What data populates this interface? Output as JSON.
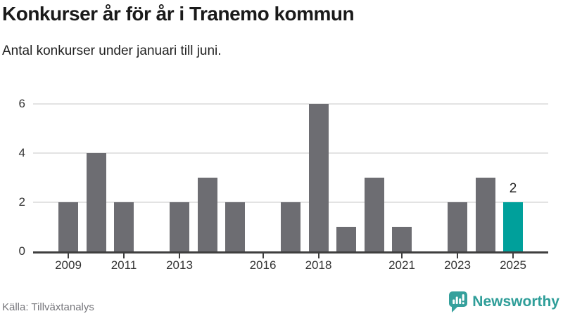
{
  "header": {
    "title": "Konkurser år för år i Tranemo kommun",
    "subtitle": "Antal konkurser under januari till juni."
  },
  "chart_data": {
    "type": "bar",
    "title": "Konkurser år för år i Tranemo kommun",
    "subtitle": "Antal konkurser under januari till juni.",
    "categories": [
      "2009",
      "2010",
      "2011",
      "2012",
      "2013",
      "2014",
      "2015",
      "2016",
      "2017",
      "2018",
      "2019",
      "2020",
      "2021",
      "2022",
      "2023",
      "2024",
      "2025"
    ],
    "values": [
      2,
      4,
      2,
      0,
      2,
      3,
      2,
      0,
      2,
      6,
      1,
      3,
      1,
      0,
      2,
      3,
      2
    ],
    "x_tick_labels": [
      "2009",
      "2011",
      "2013",
      "2016",
      "2018",
      "2021",
      "2023",
      "2025"
    ],
    "y_ticks": [
      0,
      2,
      4,
      6
    ],
    "ylim": [
      0,
      6
    ],
    "grid": true,
    "legend": false,
    "bar_color": "#6d6d72",
    "highlight": {
      "category": "2025",
      "value_label": "2",
      "color": "#00a09b"
    }
  },
  "footer": {
    "source": "Källa: Tillväxtanalys",
    "brand": "Newsworthy",
    "brand_color": "#2f9e99",
    "logo_icon": "bar-chart-speech-bubble"
  }
}
